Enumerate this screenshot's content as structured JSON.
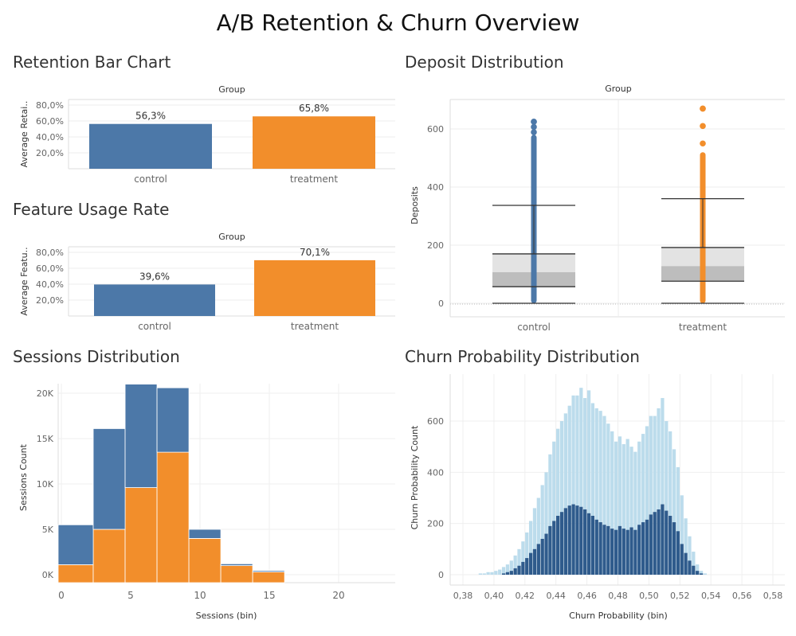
{
  "title": "A/B Retention & Churn Overview",
  "colors": {
    "control": "#4c78a8",
    "treatment": "#f28e2b",
    "churn_light": "#bcdcec",
    "churn_dark": "#2f5b8c"
  },
  "chart_data": [
    {
      "id": "retention",
      "section_title": "Retention Bar Chart",
      "type": "bar",
      "header": "Group",
      "ylabel": "Average Retai..",
      "categories": [
        "control",
        "treatment"
      ],
      "values": [
        56.3,
        65.8
      ],
      "value_labels": [
        "56,3%",
        "65,8%"
      ],
      "yticks": [
        "20,0%",
        "40,0%",
        "60,0%",
        "80,0%"
      ],
      "ytick_values": [
        20,
        40,
        60,
        80
      ],
      "ylim": [
        0,
        87
      ],
      "grid": true
    },
    {
      "id": "feature",
      "section_title": "Feature Usage Rate",
      "type": "bar",
      "header": "Group",
      "ylabel": "Average Featu..",
      "categories": [
        "control",
        "treatment"
      ],
      "values": [
        39.6,
        70.1
      ],
      "value_labels": [
        "39,6%",
        "70,1%"
      ],
      "yticks": [
        "20,0%",
        "40,0%",
        "60,0%",
        "80,0%"
      ],
      "ytick_values": [
        20,
        40,
        60,
        80
      ],
      "ylim": [
        0,
        87
      ],
      "grid": true
    },
    {
      "id": "deposit",
      "section_title": "Deposit Distribution",
      "type": "box",
      "header": "Group",
      "ylabel": "Deposits",
      "yticks": [
        "0",
        "200",
        "400",
        "600"
      ],
      "ytick_values": [
        0,
        200,
        400,
        600
      ],
      "ylim": [
        -5,
        700
      ],
      "groups": [
        {
          "name": "control",
          "whisker_low": 0,
          "q1": 57,
          "median": 107,
          "q3": 170,
          "whisker_high": 337,
          "max": 625,
          "dense_top": 580
        },
        {
          "name": "treatment",
          "whisker_low": 0,
          "q1": 76,
          "median": 128,
          "q3": 192,
          "whisker_high": 360,
          "max": 670,
          "dense_top": 520
        }
      ]
    },
    {
      "id": "sessions",
      "section_title": "Sessions Distribution",
      "type": "bar",
      "stacked": true,
      "xlabel": "Sessions (bin)",
      "ylabel": "Sessions Count",
      "bin_edges": [
        0,
        2.3,
        4.6,
        6.9,
        9.2,
        11.5,
        13.8,
        16.1
      ],
      "series": [
        {
          "name": "treatment",
          "values": [
            1100,
            5000,
            9600,
            13500,
            4000,
            1000,
            300
          ]
        },
        {
          "name": "control",
          "values": [
            4400,
            11100,
            11400,
            7100,
            1000,
            200,
            150
          ]
        }
      ],
      "xticks": [
        "0",
        "5",
        "10",
        "15",
        "20"
      ],
      "xtick_values": [
        0,
        5,
        10,
        15,
        20
      ],
      "xlim": [
        -0.3,
        23.5
      ],
      "yticks": [
        "0K",
        "5K",
        "10K",
        "15K",
        "20K"
      ],
      "ytick_values": [
        0,
        5000,
        10000,
        15000,
        20000
      ],
      "ylim": [
        -700,
        21000
      ]
    },
    {
      "id": "churn",
      "section_title": "Churn Probability Distribution",
      "type": "bar",
      "overlay": true,
      "xlabel": "Churn Probability (bin)",
      "ylabel": "Churn Probability Count",
      "x_start": 0.38,
      "bin_width": 0.0025,
      "xticks": [
        "0,38",
        "0,40",
        "0,42",
        "0,44",
        "0,46",
        "0,48",
        "0,50",
        "0,52",
        "0,54",
        "0,56",
        "0,58"
      ],
      "xtick_values": [
        0.38,
        0.4,
        0.42,
        0.44,
        0.46,
        0.48,
        0.5,
        0.52,
        0.54,
        0.56,
        0.58
      ],
      "xlim": [
        0.376,
        0.586
      ],
      "yticks": [
        "0",
        "200",
        "400",
        "600"
      ],
      "ytick_values": [
        0,
        200,
        400,
        600
      ],
      "ylim": [
        -30,
        760
      ],
      "series": [
        {
          "name": "all",
          "values": [
            0,
            0,
            0,
            0,
            5,
            5,
            10,
            10,
            15,
            20,
            30,
            40,
            55,
            75,
            100,
            130,
            165,
            210,
            260,
            300,
            350,
            400,
            470,
            520,
            570,
            600,
            630,
            660,
            700,
            700,
            730,
            690,
            720,
            670,
            650,
            640,
            620,
            590,
            560,
            520,
            540,
            510,
            530,
            500,
            480,
            520,
            550,
            580,
            620,
            620,
            650,
            690,
            600,
            560,
            490,
            420,
            310,
            220,
            150,
            90,
            40,
            15,
            5,
            0
          ]
        },
        {
          "name": "control",
          "values": [
            0,
            0,
            0,
            0,
            0,
            0,
            0,
            0,
            0,
            0,
            5,
            10,
            15,
            25,
            35,
            50,
            65,
            85,
            100,
            120,
            140,
            160,
            190,
            210,
            230,
            245,
            260,
            270,
            275,
            270,
            265,
            255,
            240,
            230,
            215,
            205,
            195,
            190,
            180,
            175,
            190,
            180,
            175,
            185,
            175,
            195,
            205,
            215,
            235,
            245,
            255,
            275,
            250,
            230,
            205,
            170,
            120,
            85,
            55,
            35,
            15,
            5,
            0,
            0
          ]
        }
      ]
    }
  ]
}
